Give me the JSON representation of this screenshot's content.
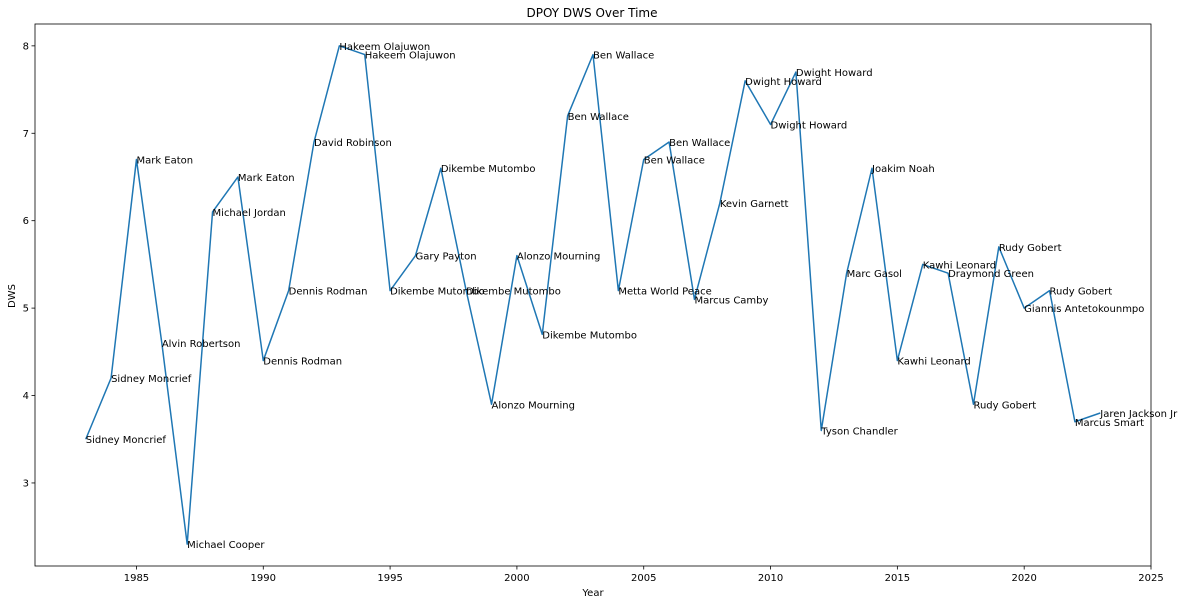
{
  "chart_data": {
    "type": "line",
    "title": "DPOY DWS Over Time",
    "xlabel": "Year",
    "ylabel": "DWS",
    "xlim": [
      1981,
      2025
    ],
    "ylim": [
      2.05,
      8.25
    ],
    "xticks": [
      1985,
      1990,
      1995,
      2000,
      2005,
      2010,
      2015,
      2020,
      2025
    ],
    "yticks": [
      3,
      4,
      5,
      6,
      7,
      8
    ],
    "grid": false,
    "line_color": "#1f77b4",
    "series": [
      {
        "points": [
          {
            "x": 1983,
            "y": 3.5,
            "label": "Sidney Moncrief"
          },
          {
            "x": 1984,
            "y": 4.2,
            "label": "Sidney Moncrief"
          },
          {
            "x": 1985,
            "y": 6.7,
            "label": "Mark Eaton"
          },
          {
            "x": 1986,
            "y": 4.6,
            "label": "Alvin Robertson"
          },
          {
            "x": 1987,
            "y": 2.3,
            "label": "Michael Cooper"
          },
          {
            "x": 1988,
            "y": 6.1,
            "label": "Michael Jordan"
          },
          {
            "x": 1989,
            "y": 6.5,
            "label": "Mark Eaton"
          },
          {
            "x": 1990,
            "y": 4.4,
            "label": "Dennis Rodman"
          },
          {
            "x": 1991,
            "y": 5.2,
            "label": "Dennis Rodman"
          },
          {
            "x": 1992,
            "y": 6.9,
            "label": "David Robinson"
          },
          {
            "x": 1993,
            "y": 8.0,
            "label": "Hakeem Olajuwon"
          },
          {
            "x": 1994,
            "y": 7.9,
            "label": "Hakeem Olajuwon"
          },
          {
            "x": 1995,
            "y": 5.2,
            "label": "Dikembe Mutombo"
          },
          {
            "x": 1996,
            "y": 5.6,
            "label": "Gary Payton"
          },
          {
            "x": 1997,
            "y": 6.6,
            "label": "Dikembe Mutombo"
          },
          {
            "x": 1998,
            "y": 5.2,
            "label": "Dikembe Mutombo"
          },
          {
            "x": 1999,
            "y": 3.9,
            "label": "Alonzo Mourning"
          },
          {
            "x": 2000,
            "y": 5.6,
            "label": "Alonzo Mourning"
          },
          {
            "x": 2001,
            "y": 4.7,
            "label": "Dikembe Mutombo"
          },
          {
            "x": 2002,
            "y": 7.2,
            "label": "Ben Wallace"
          },
          {
            "x": 2003,
            "y": 7.9,
            "label": "Ben Wallace"
          },
          {
            "x": 2004,
            "y": 5.2,
            "label": "Metta World Peace"
          },
          {
            "x": 2005,
            "y": 6.7,
            "label": "Ben Wallace"
          },
          {
            "x": 2006,
            "y": 6.9,
            "label": "Ben Wallace"
          },
          {
            "x": 2007,
            "y": 5.1,
            "label": "Marcus Camby"
          },
          {
            "x": 2008,
            "y": 6.2,
            "label": "Kevin Garnett"
          },
          {
            "x": 2009,
            "y": 7.6,
            "label": "Dwight Howard"
          },
          {
            "x": 2010,
            "y": 7.1,
            "label": "Dwight Howard"
          },
          {
            "x": 2011,
            "y": 7.7,
            "label": "Dwight Howard"
          },
          {
            "x": 2012,
            "y": 3.6,
            "label": "Tyson Chandler"
          },
          {
            "x": 2013,
            "y": 5.4,
            "label": "Marc Gasol"
          },
          {
            "x": 2014,
            "y": 6.6,
            "label": "Joakim Noah"
          },
          {
            "x": 2015,
            "y": 4.4,
            "label": "Kawhi Leonard"
          },
          {
            "x": 2016,
            "y": 5.5,
            "label": "Kawhi Leonard"
          },
          {
            "x": 2017,
            "y": 5.4,
            "label": "Draymond Green"
          },
          {
            "x": 2018,
            "y": 3.9,
            "label": "Rudy Gobert"
          },
          {
            "x": 2019,
            "y": 5.7,
            "label": "Rudy Gobert"
          },
          {
            "x": 2020,
            "y": 5.0,
            "label": "Giannis Antetokounmpo"
          },
          {
            "x": 2021,
            "y": 5.2,
            "label": "Rudy Gobert"
          },
          {
            "x": 2022,
            "y": 3.7,
            "label": "Marcus Smart"
          },
          {
            "x": 2023,
            "y": 3.8,
            "label": "Jaren Jackson Jr"
          }
        ]
      }
    ]
  }
}
